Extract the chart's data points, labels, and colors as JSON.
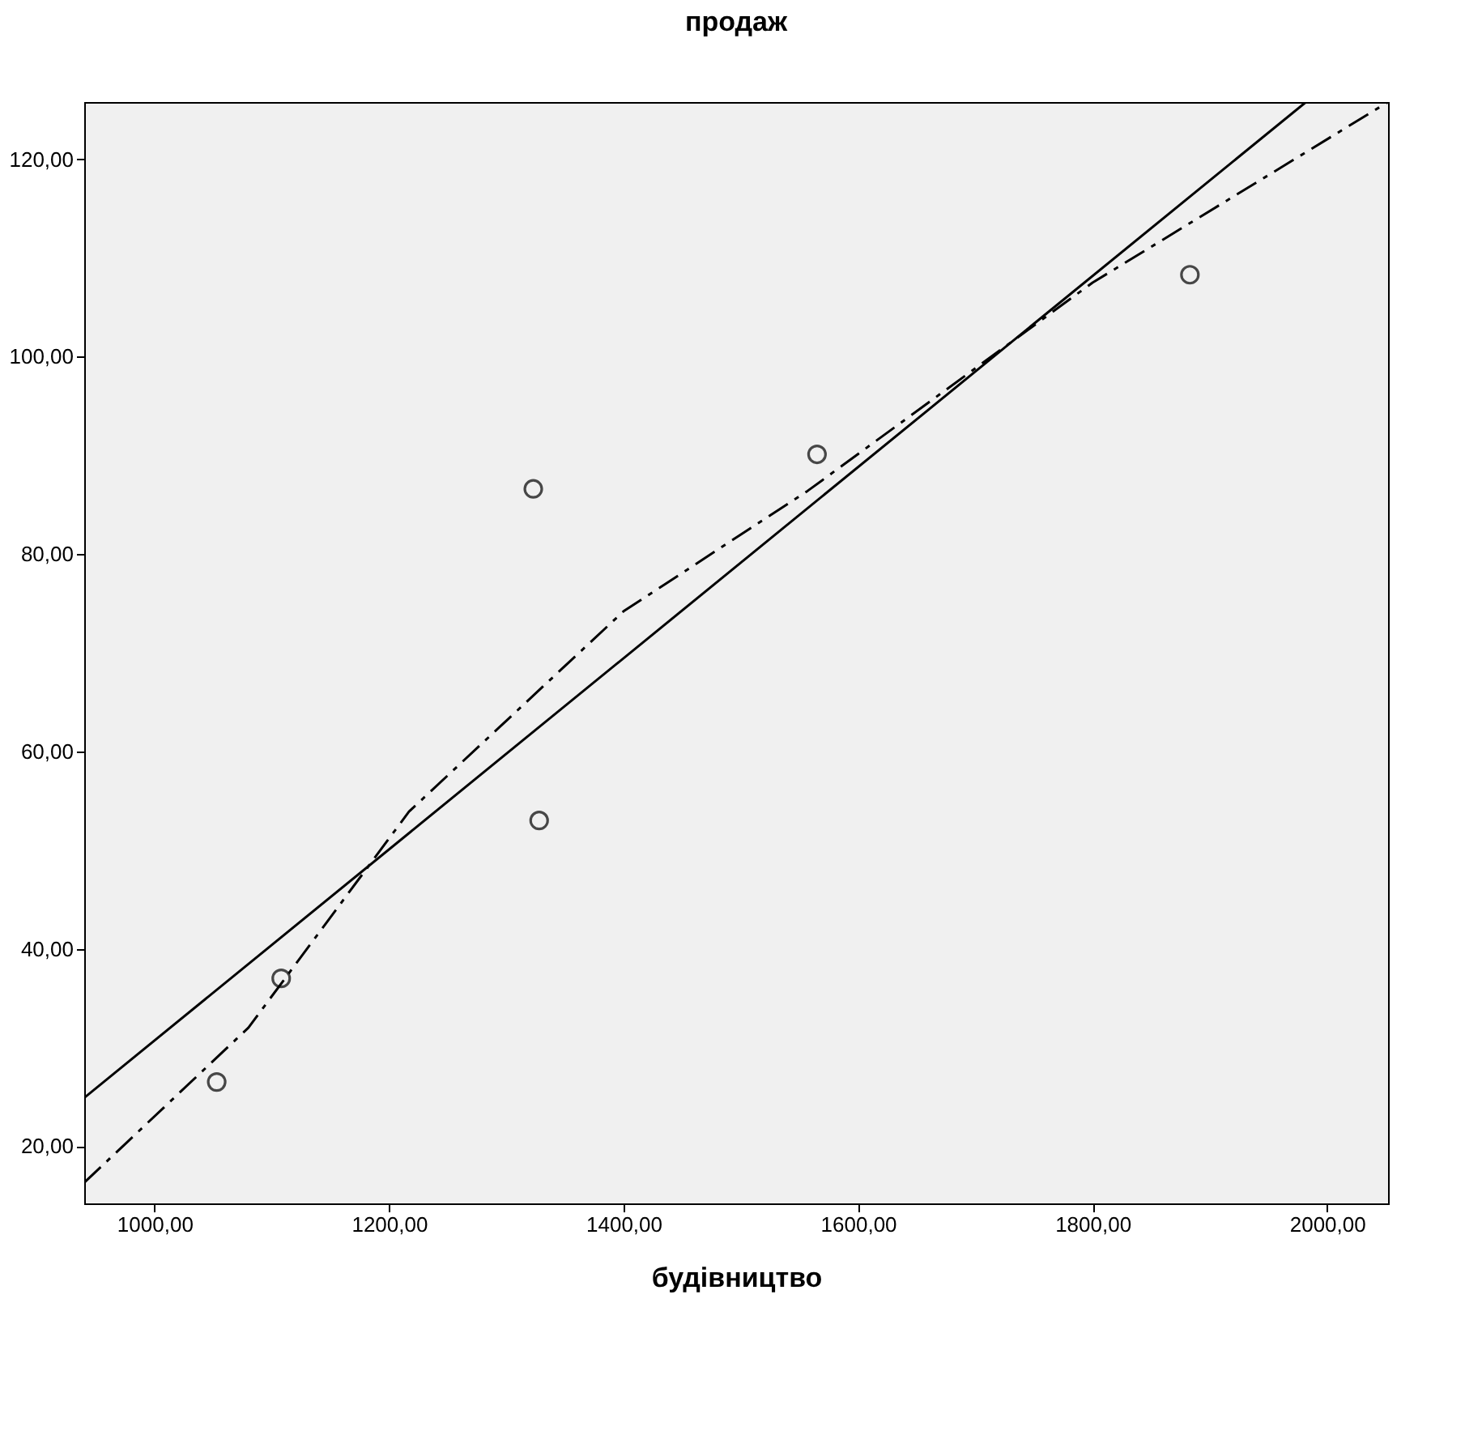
{
  "chart_data": {
    "type": "scatter",
    "title": "продаж",
    "xlabel": "будівництво",
    "xlim": [
      940,
      2052
    ],
    "ylim": [
      14.2,
      125.8
    ],
    "xticks": [
      {
        "value": 1000,
        "label": "1000,00"
      },
      {
        "value": 1200,
        "label": "1200,00"
      },
      {
        "value": 1400,
        "label": "1400,00"
      },
      {
        "value": 1600,
        "label": "1600,00"
      },
      {
        "value": 1800,
        "label": "1800,00"
      },
      {
        "value": 2000,
        "label": "2000,00"
      }
    ],
    "yticks": [
      {
        "value": 20,
        "label": "20,00"
      },
      {
        "value": 40,
        "label": "40,00"
      },
      {
        "value": 60,
        "label": "60,00"
      },
      {
        "value": 80,
        "label": "80,00"
      },
      {
        "value": 100,
        "label": "100,00"
      },
      {
        "value": 120,
        "label": "120,00"
      }
    ],
    "grid": false,
    "marker": "circle",
    "series": [
      {
        "color": "#000000",
        "x": [
          1053,
          1108,
          1323,
          1328,
          1565,
          1883
        ],
        "values": [
          26.5,
          37.0,
          86.6,
          53.0,
          90.1,
          108.3
        ]
      },
      {
        "type": "line",
        "marker": "none",
        "color": "#000000",
        "line_style": "solid",
        "x": [
          940,
          1982
        ],
        "values": [
          24.9,
          125.8
        ]
      },
      {
        "type": "line",
        "marker": "none",
        "color": "#000000",
        "line_style": "dashed",
        "x": [
          940,
          1080,
          1217,
          1400,
          1557,
          1800,
          2052
        ],
        "values": [
          16.3,
          32.0,
          53.9,
          74.2,
          86.4,
          107.5,
          125.8
        ]
      }
    ]
  }
}
